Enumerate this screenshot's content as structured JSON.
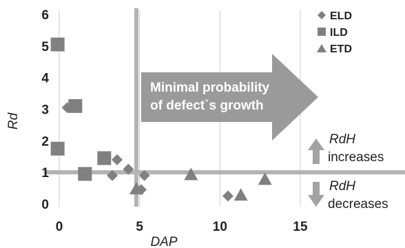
{
  "chart_data": {
    "type": "scatter",
    "title": "",
    "xlabel": "DAP",
    "ylabel": "Rd",
    "xlim": [
      0,
      15
    ],
    "ylim": [
      0,
      6
    ],
    "xticks": [
      "0",
      "5",
      "10",
      "15"
    ],
    "yticks": [
      "0",
      "1",
      "2",
      "3",
      "4",
      "5",
      "6"
    ],
    "grid": "vertical",
    "legend_position": "top-right",
    "colors": {
      "series": "#808080",
      "guide": "#b3b3b3",
      "grid": "#cccccc",
      "arrow": "#9a9a9a"
    },
    "series": [
      {
        "name": "ELD",
        "marker": "diamond",
        "points": [
          {
            "x": 0.5,
            "y": 3.05
          },
          {
            "x": 2.9,
            "y": 1.45
          },
          {
            "x": 3.3,
            "y": 0.9
          },
          {
            "x": 3.6,
            "y": 1.4
          },
          {
            "x": 4.3,
            "y": 1.1
          },
          {
            "x": 5.1,
            "y": 0.45
          },
          {
            "x": 5.3,
            "y": 0.9
          },
          {
            "x": 10.5,
            "y": 0.25
          }
        ]
      },
      {
        "name": "ILD",
        "marker": "square",
        "points": [
          {
            "x": -0.1,
            "y": 5.05
          },
          {
            "x": 1.0,
            "y": 3.1
          },
          {
            "x": -0.1,
            "y": 1.75
          },
          {
            "x": 1.6,
            "y": 0.95
          },
          {
            "x": 2.8,
            "y": 1.45
          }
        ]
      },
      {
        "name": "ETD",
        "marker": "triangle",
        "points": [
          {
            "x": 4.8,
            "y": 0.5
          },
          {
            "x": 8.2,
            "y": 0.95
          },
          {
            "x": 11.3,
            "y": 0.3
          },
          {
            "x": 12.8,
            "y": 0.8
          }
        ]
      }
    ],
    "reference_lines": {
      "x": 4.8,
      "y": 1.0
    },
    "annotations": {
      "arrow_text": [
        "Minimal probability",
        "of defect`s growth"
      ],
      "increase_label": [
        "RdH",
        "increases"
      ],
      "decrease_label": [
        "RdH",
        "decreases"
      ]
    }
  }
}
